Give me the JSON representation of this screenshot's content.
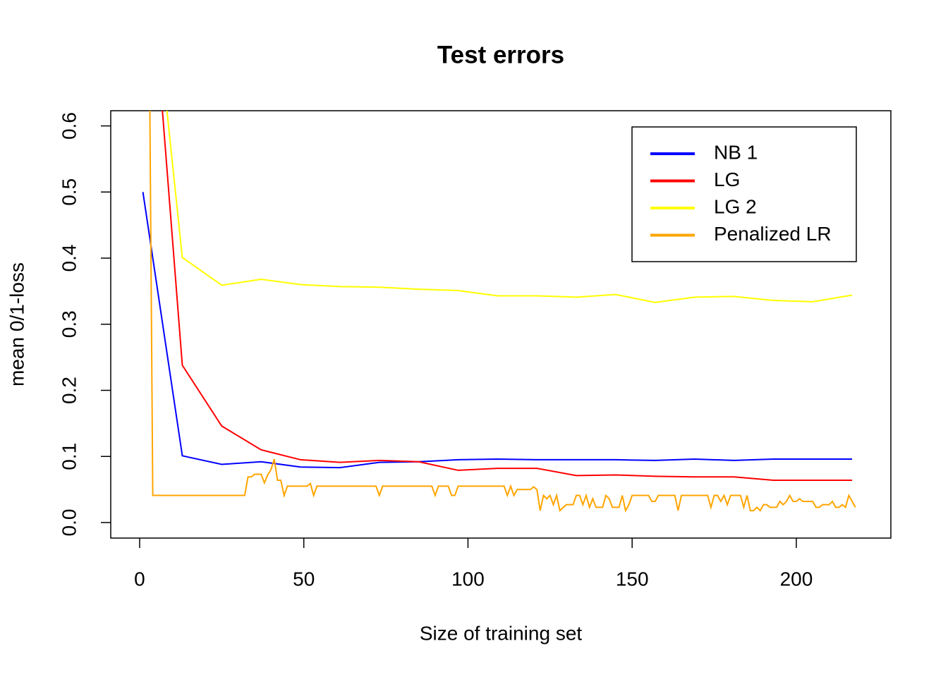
{
  "chart_data": {
    "type": "line",
    "title": "Test errors",
    "x_label": "Size of training set",
    "y_label": "mean 0/1-loss",
    "xlim": [
      -8.8,
      228.8
    ],
    "ylim": [
      -0.0235,
      0.623
    ],
    "xticks": [
      0,
      50,
      100,
      150,
      200
    ],
    "yticks": [
      {
        "value": 0,
        "label": "0.0"
      },
      0.1,
      0.2,
      0.3,
      0.4,
      0.5,
      0.6
    ],
    "legend": "topright",
    "series": [
      {
        "name": "NB 1",
        "color": "#0000ff",
        "x": [
          1,
          13,
          25,
          37,
          49,
          61,
          73,
          85,
          97,
          109,
          121,
          133,
          145,
          157,
          169,
          181,
          193,
          205,
          217
        ],
        "values": [
          0.5,
          0.101,
          0.088,
          0.092,
          0.084,
          0.083,
          0.091,
          0.092,
          0.095,
          0.096,
          0.095,
          0.095,
          0.095,
          0.094,
          0.096,
          0.094,
          0.096,
          0.096,
          0.096
        ]
      },
      {
        "name": "LG",
        "color": "#ff0000",
        "x": [
          1,
          13,
          25,
          37,
          49,
          61,
          73,
          85,
          97,
          109,
          121,
          133,
          145,
          157,
          169,
          181,
          193,
          205,
          217
        ],
        "values": [
          1.0,
          0.238,
          0.146,
          0.11,
          0.095,
          0.091,
          0.094,
          0.092,
          0.079,
          0.082,
          0.082,
          0.071,
          0.072,
          0.07,
          0.069,
          0.069,
          0.064,
          0.064,
          0.064
        ]
      },
      {
        "name": "LG 2",
        "color": "#ffff00",
        "x": [
          1,
          13,
          25,
          37,
          49,
          61,
          73,
          85,
          97,
          109,
          121,
          133,
          145,
          157,
          169,
          181,
          193,
          205,
          217
        ],
        "values": [
          0.97,
          0.401,
          0.359,
          0.368,
          0.36,
          0.357,
          0.356,
          0.353,
          0.351,
          0.343,
          0.343,
          0.341,
          0.345,
          0.333,
          0.341,
          0.342,
          0.336,
          0.334,
          0.344
        ]
      },
      {
        "name": "Penalized LR",
        "color": "#ffa500",
        "x": [
          3,
          4,
          5,
          6,
          7,
          8,
          9,
          10,
          11,
          12,
          13,
          14,
          15,
          16,
          17,
          18,
          19,
          20,
          21,
          22,
          23,
          24,
          25,
          26,
          27,
          28,
          29,
          30,
          31,
          32,
          33,
          34,
          35,
          36,
          37,
          38,
          39,
          40,
          41,
          42,
          43,
          44,
          45,
          46,
          47,
          48,
          49,
          50,
          51,
          52,
          53,
          54,
          55,
          56,
          57,
          58,
          59,
          60,
          61,
          62,
          63,
          64,
          65,
          66,
          67,
          68,
          69,
          70,
          71,
          72,
          73,
          74,
          75,
          76,
          77,
          78,
          79,
          80,
          81,
          82,
          83,
          84,
          85,
          86,
          87,
          88,
          89,
          90,
          91,
          92,
          93,
          94,
          95,
          96,
          97,
          98,
          99,
          100,
          101,
          102,
          103,
          104,
          105,
          106,
          107,
          108,
          109,
          110,
          111,
          112,
          113,
          114,
          115,
          116,
          117,
          118,
          119,
          120,
          121,
          122,
          123,
          124,
          125,
          126,
          127,
          128,
          129,
          130,
          131,
          132,
          133,
          134,
          135,
          136,
          137,
          138,
          139,
          140,
          141,
          142,
          143,
          144,
          145,
          146,
          147,
          148,
          149,
          150,
          151,
          152,
          153,
          154,
          155,
          156,
          157,
          158,
          159,
          160,
          161,
          162,
          163,
          164,
          165,
          166,
          167,
          168,
          169,
          170,
          171,
          172,
          173,
          174,
          175,
          176,
          177,
          178,
          179,
          180,
          181,
          182,
          183,
          184,
          185,
          186,
          187,
          188,
          189,
          190,
          191,
          192,
          193,
          194,
          195,
          196,
          197,
          198,
          199,
          200,
          201,
          202,
          203,
          204,
          205,
          206,
          207,
          208,
          209,
          210,
          211,
          212,
          213,
          214,
          215,
          216,
          217,
          218
        ],
        "values": [
          0.7,
          0.041,
          0.041,
          0.041,
          0.041,
          0.041,
          0.041,
          0.041,
          0.041,
          0.041,
          0.041,
          0.041,
          0.041,
          0.041,
          0.041,
          0.041,
          0.041,
          0.041,
          0.041,
          0.041,
          0.041,
          0.041,
          0.041,
          0.041,
          0.041,
          0.041,
          0.041,
          0.041,
          0.041,
          0.041,
          0.069,
          0.069,
          0.073,
          0.073,
          0.073,
          0.06,
          0.072,
          0.08,
          0.096,
          0.064,
          0.064,
          0.041,
          0.055,
          0.055,
          0.055,
          0.055,
          0.055,
          0.055,
          0.055,
          0.059,
          0.041,
          0.055,
          0.055,
          0.055,
          0.055,
          0.055,
          0.055,
          0.055,
          0.055,
          0.055,
          0.055,
          0.055,
          0.055,
          0.055,
          0.055,
          0.055,
          0.055,
          0.055,
          0.055,
          0.055,
          0.041,
          0.055,
          0.055,
          0.055,
          0.055,
          0.055,
          0.055,
          0.055,
          0.055,
          0.055,
          0.055,
          0.055,
          0.055,
          0.055,
          0.055,
          0.055,
          0.055,
          0.041,
          0.055,
          0.055,
          0.055,
          0.055,
          0.041,
          0.041,
          0.055,
          0.055,
          0.055,
          0.055,
          0.055,
          0.055,
          0.055,
          0.055,
          0.055,
          0.055,
          0.055,
          0.055,
          0.055,
          0.055,
          0.055,
          0.041,
          0.055,
          0.041,
          0.05,
          0.05,
          0.05,
          0.05,
          0.05,
          0.054,
          0.05,
          0.018,
          0.041,
          0.036,
          0.041,
          0.027,
          0.041,
          0.018,
          0.023,
          0.027,
          0.027,
          0.027,
          0.041,
          0.041,
          0.027,
          0.041,
          0.023,
          0.036,
          0.023,
          0.023,
          0.023,
          0.041,
          0.036,
          0.023,
          0.023,
          0.023,
          0.041,
          0.018,
          0.027,
          0.041,
          0.041,
          0.041,
          0.041,
          0.041,
          0.041,
          0.032,
          0.032,
          0.041,
          0.041,
          0.041,
          0.041,
          0.041,
          0.041,
          0.018,
          0.041,
          0.041,
          0.041,
          0.041,
          0.041,
          0.041,
          0.041,
          0.041,
          0.041,
          0.023,
          0.041,
          0.041,
          0.032,
          0.041,
          0.027,
          0.041,
          0.041,
          0.041,
          0.041,
          0.023,
          0.041,
          0.018,
          0.018,
          0.023,
          0.018,
          0.027,
          0.027,
          0.023,
          0.023,
          0.023,
          0.032,
          0.027,
          0.032,
          0.041,
          0.032,
          0.032,
          0.036,
          0.032,
          0.032,
          0.032,
          0.032,
          0.023,
          0.023,
          0.027,
          0.027,
          0.027,
          0.032,
          0.023,
          0.023,
          0.027,
          0.023,
          0.041,
          0.032,
          0.023
        ]
      }
    ]
  }
}
